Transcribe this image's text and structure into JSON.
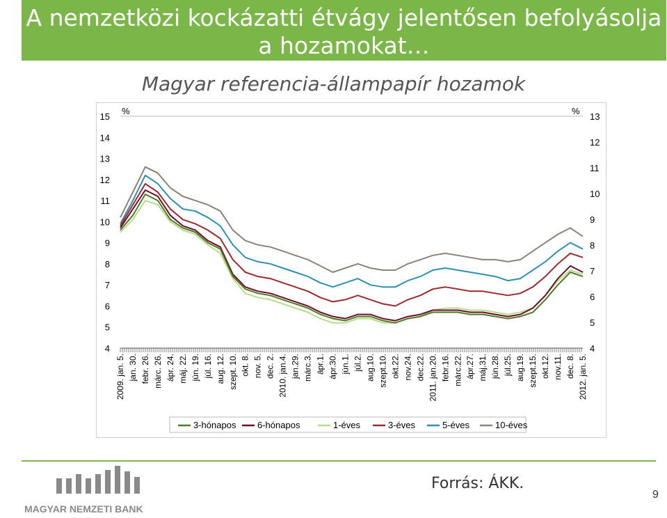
{
  "slide": {
    "title": "A nemzetközi kockázatti étvágy jelentősen befolyásolja a hozamokat…",
    "source": "Forrás: ÁKK.",
    "page_number": "9",
    "logo_text": "MAGYAR NEMZETI BANK"
  },
  "colors": {
    "header_green": "#7ab648",
    "s3m": "#4f7a28",
    "s6m": "#6b0f2a",
    "s1y": "#b7dc8c",
    "s3y": "#9b2a2f",
    "s5y": "#2e8fb0",
    "s10y": "#8c8277"
  },
  "chart_data": {
    "type": "line",
    "title": "Magyar referencia-állampapír hozamok",
    "left_unit": "%",
    "right_unit": "%",
    "left_axis": {
      "min": 4,
      "max": 15,
      "ticks": [
        "15",
        "14",
        "13",
        "12",
        "11",
        "10",
        "9",
        "8",
        "7",
        "6",
        "5",
        "4"
      ]
    },
    "right_axis": {
      "min": 4,
      "max": 13,
      "ticks": [
        "13",
        "12",
        "11",
        "10",
        "9",
        "8",
        "7",
        "6",
        "5",
        "4"
      ]
    },
    "legend_position": "bottom",
    "x_labels": [
      "2009. jan. 5.",
      "jan. 30.",
      "febr. 26.",
      "márc. 26.",
      "ápr. 24.",
      "máj. 22.",
      "jún. 19.",
      "júl. 16.",
      "aug. 12.",
      "szept. 10.",
      "okt. 8.",
      "nov. 5.",
      "dec. 2.",
      "2010. jan.4.",
      "jan.29.",
      "márc.3.",
      "ápr.1.",
      "ápr.30.",
      "jún.1.",
      "júl.2.",
      "aug.10.",
      "szept.10.",
      "okt.22.",
      "nov.24.",
      "dec.22.",
      "2011. jan.20.",
      "febr.16.",
      "márc.22.",
      "ápr.27.",
      "máj.31.",
      "jún.28.",
      "júl.25.",
      "aug.19.",
      "szept.15.",
      "okt.12.",
      "nov.11.",
      "dec. 8.",
      "2012. jan. 5."
    ],
    "series": [
      {
        "name": "3-hónapos",
        "color_key": "s3m",
        "values": [
          9.6,
          10.3,
          11.3,
          11.0,
          10.1,
          9.7,
          9.5,
          9.0,
          8.7,
          7.4,
          6.8,
          6.6,
          6.5,
          6.3,
          6.1,
          5.9,
          5.6,
          5.4,
          5.3,
          5.5,
          5.5,
          5.3,
          5.2,
          5.4,
          5.5,
          5.7,
          5.7,
          5.7,
          5.6,
          5.6,
          5.5,
          5.4,
          5.5,
          5.7,
          6.3,
          7.0,
          7.6,
          7.4
        ]
      },
      {
        "name": "6-hónapos",
        "color_key": "s6m",
        "values": [
          9.7,
          10.6,
          11.5,
          11.2,
          10.3,
          9.8,
          9.6,
          9.1,
          8.8,
          7.5,
          6.9,
          6.7,
          6.6,
          6.4,
          6.2,
          6.0,
          5.7,
          5.5,
          5.4,
          5.6,
          5.6,
          5.4,
          5.3,
          5.5,
          5.6,
          5.8,
          5.8,
          5.8,
          5.7,
          5.7,
          5.6,
          5.5,
          5.6,
          5.9,
          6.5,
          7.3,
          7.9,
          7.6
        ]
      },
      {
        "name": "1-éves",
        "color_key": "s1y",
        "values": [
          9.5,
          10.1,
          11.0,
          10.8,
          10.0,
          9.6,
          9.4,
          8.9,
          8.5,
          7.3,
          6.6,
          6.4,
          6.3,
          6.1,
          5.9,
          5.7,
          5.4,
          5.2,
          5.2,
          5.4,
          5.4,
          5.2,
          5.2,
          5.4,
          5.5,
          5.8,
          5.9,
          5.9,
          5.8,
          5.8,
          5.7,
          5.6,
          5.7,
          5.9,
          6.5,
          7.2,
          7.7,
          7.5
        ]
      },
      {
        "name": "3-éves",
        "color_key": "s3y",
        "values": [
          9.8,
          10.8,
          11.8,
          11.4,
          10.6,
          10.1,
          9.9,
          9.6,
          9.2,
          8.2,
          7.6,
          7.4,
          7.3,
          7.1,
          6.9,
          6.7,
          6.4,
          6.2,
          6.3,
          6.5,
          6.3,
          6.1,
          6.0,
          6.3,
          6.5,
          6.8,
          6.9,
          6.8,
          6.7,
          6.7,
          6.6,
          6.5,
          6.6,
          6.9,
          7.4,
          8.0,
          8.5,
          8.3
        ]
      },
      {
        "name": "5-éves",
        "color_key": "s5y",
        "values": [
          9.9,
          11.0,
          12.2,
          11.8,
          11.1,
          10.6,
          10.5,
          10.2,
          9.8,
          8.9,
          8.3,
          8.1,
          8.0,
          7.8,
          7.6,
          7.4,
          7.1,
          6.9,
          7.1,
          7.3,
          7.0,
          6.9,
          6.9,
          7.2,
          7.4,
          7.7,
          7.8,
          7.7,
          7.6,
          7.5,
          7.4,
          7.2,
          7.3,
          7.7,
          8.1,
          8.6,
          9.0,
          8.7
        ]
      },
      {
        "name": "10-éves",
        "color_key": "s10y",
        "values": [
          10.2,
          11.4,
          12.6,
          12.3,
          11.6,
          11.2,
          11.0,
          10.8,
          10.5,
          9.6,
          9.1,
          8.9,
          8.8,
          8.6,
          8.4,
          8.2,
          7.9,
          7.6,
          7.8,
          8.0,
          7.8,
          7.7,
          7.7,
          8.0,
          8.2,
          8.4,
          8.5,
          8.4,
          8.3,
          8.2,
          8.2,
          8.1,
          8.2,
          8.6,
          9.0,
          9.4,
          9.7,
          9.3
        ]
      }
    ]
  }
}
